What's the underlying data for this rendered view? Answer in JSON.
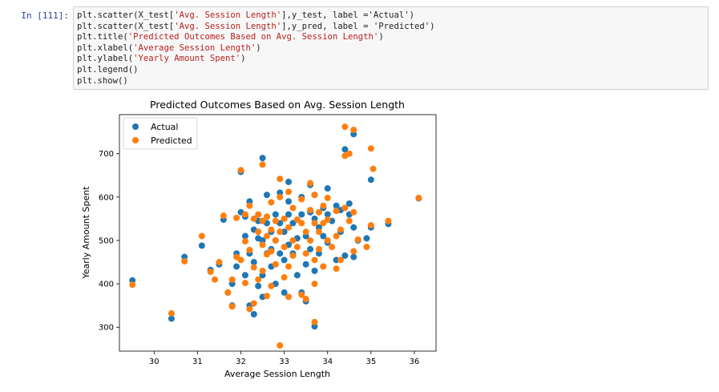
{
  "cell": {
    "prompt": "In [111]:",
    "code_lines": [
      {
        "pre": "plt.scatter(X_test[",
        "str": "'Avg. Session Length'",
        "post": "],y_test, label ='Actual')"
      },
      {
        "pre": "plt.scatter(X_test[",
        "str": "'Avg. Session Length'",
        "post": "],y_pred, label = 'Predicted')"
      },
      {
        "pre": "plt.title(",
        "str": "'Predicted Outcomes Based on Avg. Session Length'",
        "post": ")"
      },
      {
        "pre": "plt.xlabel(",
        "str": "'Average Session Length'",
        "post": ")"
      },
      {
        "pre": "plt.ylabel(",
        "str": "'Yearly Amount Spent'",
        "post": ")"
      },
      {
        "pre": "plt.legend()",
        "str": "",
        "post": ""
      },
      {
        "pre": "plt.show()",
        "str": "",
        "post": ""
      }
    ]
  },
  "chart_data": {
    "type": "scatter",
    "title": "Predicted Outcomes Based on Avg. Session Length",
    "xlabel": "Average Session Length",
    "ylabel": "Yearly Amount Spent",
    "xlim": [
      29.2,
      36.5
    ],
    "ylim": [
      245,
      790
    ],
    "xticks": [
      30,
      31,
      32,
      33,
      34,
      35,
      36
    ],
    "yticks": [
      300,
      400,
      500,
      600,
      700
    ],
    "legend_position": "upper left",
    "colors": {
      "Actual": "#1f77b4",
      "Predicted": "#ff7f0e"
    },
    "series": [
      {
        "name": "Actual",
        "points": [
          [
            29.5,
            408
          ],
          [
            30.4,
            320
          ],
          [
            30.7,
            462
          ],
          [
            31.1,
            488
          ],
          [
            31.3,
            432
          ],
          [
            31.5,
            445
          ],
          [
            31.6,
            548
          ],
          [
            31.7,
            380
          ],
          [
            31.8,
            350
          ],
          [
            31.8,
            400
          ],
          [
            31.9,
            470
          ],
          [
            31.9,
            440
          ],
          [
            32.0,
            565
          ],
          [
            32.0,
            658
          ],
          [
            32.1,
            555
          ],
          [
            32.1,
            510
          ],
          [
            32.1,
            420
          ],
          [
            32.2,
            350
          ],
          [
            32.2,
            590
          ],
          [
            32.2,
            470
          ],
          [
            32.3,
            330
          ],
          [
            32.3,
            525
          ],
          [
            32.3,
            450
          ],
          [
            32.4,
            395
          ],
          [
            32.4,
            505
          ],
          [
            32.4,
            545
          ],
          [
            32.5,
            500
          ],
          [
            32.5,
            690
          ],
          [
            32.5,
            420
          ],
          [
            32.5,
            370
          ],
          [
            32.6,
            540
          ],
          [
            32.6,
            470
          ],
          [
            32.6,
            605
          ],
          [
            32.7,
            520
          ],
          [
            32.7,
            480
          ],
          [
            32.7,
            440
          ],
          [
            32.8,
            560
          ],
          [
            32.8,
            500
          ],
          [
            32.8,
            400
          ],
          [
            32.9,
            610
          ],
          [
            32.9,
            470
          ],
          [
            32.9,
            540
          ],
          [
            33.0,
            520
          ],
          [
            33.0,
            455
          ],
          [
            33.0,
            380
          ],
          [
            33.1,
            560
          ],
          [
            33.1,
            490
          ],
          [
            33.1,
            635
          ],
          [
            33.1,
            590
          ],
          [
            33.2,
            540
          ],
          [
            33.2,
            470
          ],
          [
            33.3,
            505
          ],
          [
            33.3,
            420
          ],
          [
            33.4,
            560
          ],
          [
            33.4,
            600
          ],
          [
            33.4,
            380
          ],
          [
            33.5,
            510
          ],
          [
            33.5,
            445
          ],
          [
            33.5,
            360
          ],
          [
            33.6,
            628
          ],
          [
            33.6,
            565
          ],
          [
            33.6,
            480
          ],
          [
            33.7,
            550
          ],
          [
            33.7,
            302
          ],
          [
            33.7,
            605
          ],
          [
            33.7,
            430
          ],
          [
            33.8,
            530
          ],
          [
            33.8,
            470
          ],
          [
            33.9,
            575
          ],
          [
            33.9,
            510
          ],
          [
            33.9,
            440
          ],
          [
            34.0,
            620
          ],
          [
            34.0,
            560
          ],
          [
            34.0,
            495
          ],
          [
            34.1,
            545
          ],
          [
            34.2,
            580
          ],
          [
            34.2,
            455
          ],
          [
            34.3,
            520
          ],
          [
            34.3,
            570
          ],
          [
            34.4,
            710
          ],
          [
            34.4,
            465
          ],
          [
            34.5,
            560
          ],
          [
            34.5,
            585
          ],
          [
            34.6,
            745
          ],
          [
            34.6,
            530
          ],
          [
            34.6,
            462
          ],
          [
            34.7,
            500
          ],
          [
            34.9,
            505
          ],
          [
            35.0,
            530
          ],
          [
            35.0,
            640
          ],
          [
            35.4,
            538
          ],
          [
            36.1,
            597
          ]
        ]
      },
      {
        "name": "Predicted",
        "points": [
          [
            29.5,
            398
          ],
          [
            30.4,
            332
          ],
          [
            30.7,
            452
          ],
          [
            31.1,
            510
          ],
          [
            31.3,
            428
          ],
          [
            31.4,
            410
          ],
          [
            31.5,
            450
          ],
          [
            31.6,
            557
          ],
          [
            31.7,
            380
          ],
          [
            31.8,
            348
          ],
          [
            31.8,
            410
          ],
          [
            31.9,
            462
          ],
          [
            31.9,
            552
          ],
          [
            32.0,
            662
          ],
          [
            32.0,
            455
          ],
          [
            32.1,
            560
          ],
          [
            32.1,
            402
          ],
          [
            32.1,
            498
          ],
          [
            32.2,
            580
          ],
          [
            32.2,
            342
          ],
          [
            32.2,
            478
          ],
          [
            32.3,
            355
          ],
          [
            32.3,
            550
          ],
          [
            32.3,
            438
          ],
          [
            32.4,
            560
          ],
          [
            32.4,
            410
          ],
          [
            32.4,
            520
          ],
          [
            32.5,
            675
          ],
          [
            32.5,
            490
          ],
          [
            32.5,
            545
          ],
          [
            32.5,
            430
          ],
          [
            32.6,
            555
          ],
          [
            32.6,
            510
          ],
          [
            32.6,
            468
          ],
          [
            32.6,
            372
          ],
          [
            32.7,
            525
          ],
          [
            32.7,
            588
          ],
          [
            32.7,
            475
          ],
          [
            32.7,
            395
          ],
          [
            32.8,
            545
          ],
          [
            32.8,
            500
          ],
          [
            32.8,
            445
          ],
          [
            32.9,
            642
          ],
          [
            32.9,
            520
          ],
          [
            32.9,
            600
          ],
          [
            32.9,
            258
          ],
          [
            33.0,
            550
          ],
          [
            33.0,
            485
          ],
          [
            33.0,
            415
          ],
          [
            33.1,
            612
          ],
          [
            33.1,
            530
          ],
          [
            33.1,
            440
          ],
          [
            33.1,
            370
          ],
          [
            33.2,
            575
          ],
          [
            33.2,
            500
          ],
          [
            33.2,
            465
          ],
          [
            33.3,
            548
          ],
          [
            33.3,
            485
          ],
          [
            33.4,
            375
          ],
          [
            33.4,
            595
          ],
          [
            33.4,
            540
          ],
          [
            33.5,
            470
          ],
          [
            33.5,
            365
          ],
          [
            33.5,
            520
          ],
          [
            33.6,
            632
          ],
          [
            33.6,
            570
          ],
          [
            33.6,
            500
          ],
          [
            33.7,
            605
          ],
          [
            33.7,
            540
          ],
          [
            33.7,
            455
          ],
          [
            33.7,
            312
          ],
          [
            33.7,
            400
          ],
          [
            33.8,
            520
          ],
          [
            33.8,
            480
          ],
          [
            33.8,
            565
          ],
          [
            33.9,
            540
          ],
          [
            33.9,
            580
          ],
          [
            33.9,
            440
          ],
          [
            34.0,
            598
          ],
          [
            34.0,
            548
          ],
          [
            34.0,
            500
          ],
          [
            34.1,
            485
          ],
          [
            34.2,
            510
          ],
          [
            34.2,
            568
          ],
          [
            34.2,
            435
          ],
          [
            34.3,
            455
          ],
          [
            34.3,
            525
          ],
          [
            34.4,
            762
          ],
          [
            34.4,
            695
          ],
          [
            34.4,
            575
          ],
          [
            34.5,
            700
          ],
          [
            34.5,
            545
          ],
          [
            34.6,
            755
          ],
          [
            34.6,
            565
          ],
          [
            34.6,
            475
          ],
          [
            34.7,
            502
          ],
          [
            34.9,
            485
          ],
          [
            35.0,
            712
          ],
          [
            35.0,
            535
          ],
          [
            35.05,
            665
          ],
          [
            35.4,
            545
          ],
          [
            36.1,
            598
          ]
        ]
      }
    ]
  }
}
